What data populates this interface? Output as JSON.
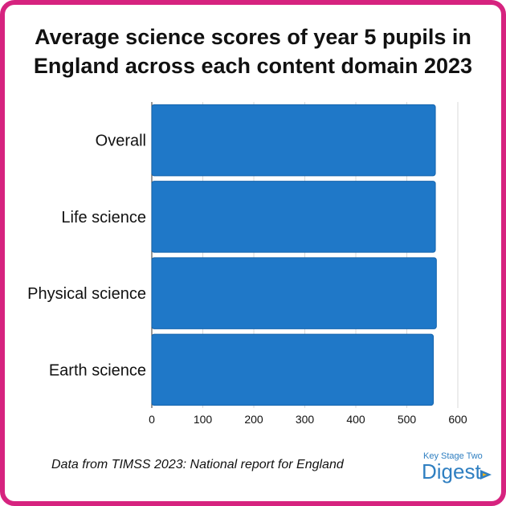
{
  "source_note": "Data from TIMSS 2023: National report for England",
  "logo": {
    "line1": "Key Stage Two",
    "line2": "Digest"
  },
  "colors": {
    "frame": "#d6237f",
    "bar": "#1f78c8",
    "bar_edge": "#1463ad",
    "logo": "#2f7fc1"
  },
  "chart_data": {
    "type": "bar",
    "orientation": "horizontal",
    "title": "Average science scores of year 5 pupils in England across each content domain 2023",
    "title_lines": [
      "Average science scores of year 5 pupils in",
      "England across each content domain 2023"
    ],
    "categories": [
      "Overall",
      "Life science",
      "Physical science",
      "Earth science"
    ],
    "values": [
      556,
      556,
      558,
      552
    ],
    "xlim": [
      0,
      600
    ],
    "xticks": [
      0,
      100,
      200,
      300,
      400,
      500,
      600
    ],
    "grid": true,
    "xlabel": "",
    "ylabel": ""
  }
}
